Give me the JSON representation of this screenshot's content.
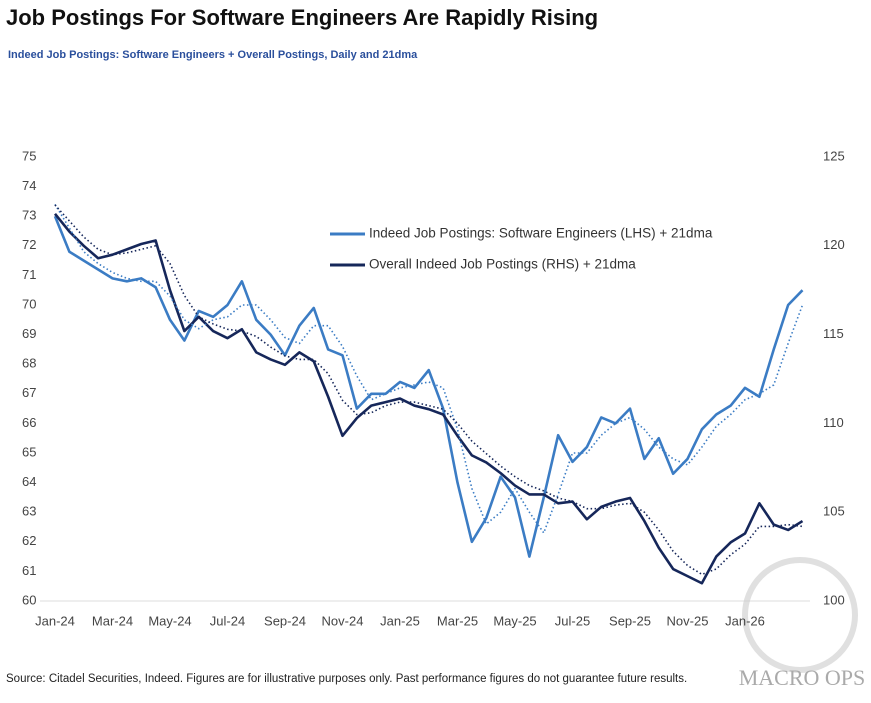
{
  "chart_data": {
    "type": "line",
    "title": "Job Postings For Software Engineers Are Rapidly Rising",
    "subtitle": "Indeed Job Postings: Software Engineers + Overall Postings, Daily and 21dma",
    "source": "Source: Citadel Securities, Indeed. Figures are for illustrative purposes only. Past performance figures do not guarantee future results.",
    "watermark": "MACRO OPS",
    "categories": [
      "Jan-24",
      null,
      null,
      null,
      "Mar-24",
      null,
      null,
      null,
      "May-24",
      null,
      null,
      null,
      "Jul-24",
      null,
      null,
      null,
      "Sep-24",
      null,
      null,
      null,
      "Nov-24",
      null,
      null,
      null,
      "Jan-25",
      null,
      null,
      null,
      "Mar-25",
      null,
      null,
      null,
      "May-25",
      null,
      null,
      null,
      "Jul-25",
      null,
      null,
      null,
      "Sep-25",
      null,
      null,
      null,
      "Nov-25",
      null,
      null,
      null,
      "Jan-26",
      null,
      null,
      null,
      null
    ],
    "ylim": [
      60,
      75
    ],
    "yticks": [
      60,
      61,
      62,
      63,
      64,
      65,
      66,
      67,
      68,
      69,
      70,
      71,
      72,
      73,
      74,
      75
    ],
    "y2lim": [
      100,
      125
    ],
    "y2ticks": [
      100,
      105,
      110,
      115,
      120,
      125
    ],
    "series": [
      {
        "name": "Indeed Job Postings: Software Engineers (LHS) + 21dma",
        "color": "#3b7cc4",
        "axis": "y",
        "dotted": false,
        "values": [
          73.0,
          71.8,
          71.5,
          71.2,
          70.9,
          70.8,
          70.9,
          70.6,
          69.5,
          68.8,
          69.8,
          69.6,
          70.0,
          70.8,
          69.5,
          69.0,
          68.3,
          69.3,
          69.9,
          68.5,
          68.3,
          66.5,
          67.0,
          67.0,
          67.4,
          67.2,
          67.8,
          66.5,
          64.0,
          62.0,
          62.8,
          64.2,
          63.5,
          61.5,
          63.5,
          65.6,
          64.7,
          65.2,
          66.2,
          66.0,
          66.5,
          64.8,
          65.5,
          64.3,
          64.8,
          65.8,
          66.3,
          66.6,
          67.2,
          66.9,
          68.5,
          70.0,
          70.5
        ]
      },
      {
        "name": "Overall Indeed Job Postings (RHS) + 21dma",
        "color": "#16275a",
        "axis": "y2",
        "dotted": false,
        "values": [
          121.8,
          120.8,
          120.0,
          119.3,
          119.5,
          119.8,
          120.1,
          120.3,
          117.5,
          115.2,
          116.0,
          115.2,
          114.8,
          115.3,
          114.0,
          113.6,
          113.3,
          114.0,
          113.5,
          111.5,
          109.3,
          110.3,
          111.0,
          111.2,
          111.4,
          111.0,
          110.8,
          110.5,
          109.3,
          108.2,
          107.8,
          107.2,
          106.5,
          106.0,
          106.0,
          105.5,
          105.6,
          104.6,
          105.3,
          105.6,
          105.8,
          104.5,
          103.0,
          101.8,
          101.4,
          101.0,
          102.5,
          103.3,
          103.8,
          105.5,
          104.3,
          104.0,
          104.5
        ]
      },
      {
        "color": "#3b7cc4",
        "axis": "y",
        "dotted": true,
        "values": [
          73.4,
          72.6,
          71.8,
          71.4,
          71.1,
          70.9,
          70.8,
          70.8,
          70.3,
          69.5,
          69.2,
          69.5,
          69.6,
          70.0,
          70.0,
          69.5,
          68.9,
          68.7,
          69.3,
          69.3,
          68.6,
          67.6,
          66.8,
          67.0,
          67.2,
          67.3,
          67.4,
          67.2,
          65.8,
          63.8,
          62.6,
          63.0,
          63.8,
          63.0,
          62.3,
          63.6,
          65.0,
          65.0,
          65.6,
          66.0,
          66.2,
          65.8,
          65.2,
          64.8,
          64.6,
          65.2,
          65.9,
          66.3,
          66.8,
          67.0,
          67.3,
          68.7,
          70.0
        ]
      },
      {
        "color": "#16275a",
        "axis": "y2",
        "dotted": true,
        "values": [
          122.3,
          121.4,
          120.5,
          119.8,
          119.5,
          119.6,
          119.8,
          120.0,
          119.0,
          117.2,
          116.0,
          115.6,
          115.3,
          115.2,
          114.9,
          114.3,
          113.8,
          113.6,
          113.6,
          112.8,
          111.3,
          110.5,
          110.6,
          111.0,
          111.2,
          111.2,
          111.0,
          110.8,
          110.0,
          109.0,
          108.3,
          107.6,
          107.0,
          106.5,
          106.2,
          105.8,
          105.6,
          105.2,
          105.2,
          105.4,
          105.5,
          105.0,
          104.0,
          102.8,
          102.0,
          101.5,
          101.8,
          102.6,
          103.2,
          104.2,
          104.2,
          104.3,
          104.2
        ]
      }
    ]
  }
}
